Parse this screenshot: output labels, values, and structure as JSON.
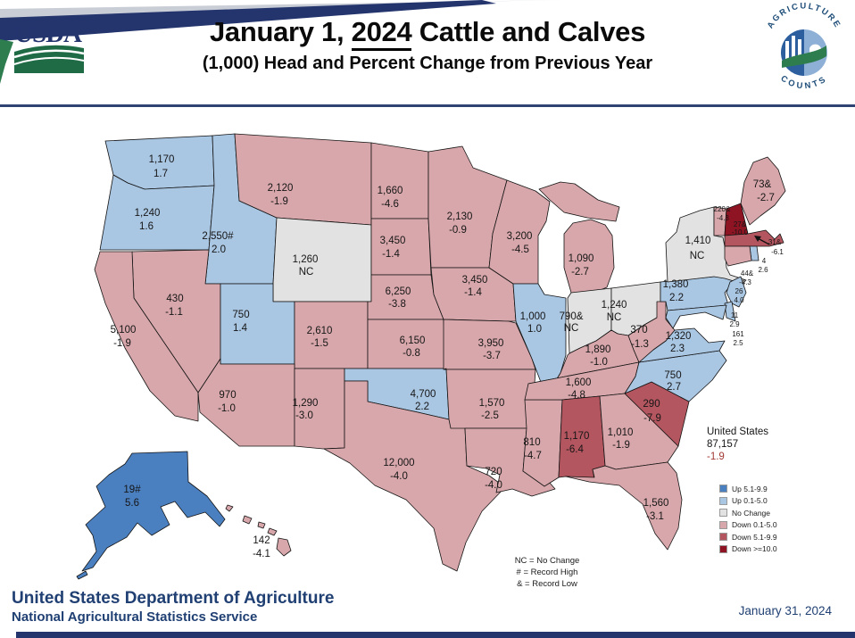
{
  "header": {
    "usda_wordmark": "USDA",
    "title": {
      "prefix": "January 1, ",
      "year": "2024",
      "suffix": " Cattle and Calves"
    },
    "subtitle": "(1,000) Head and Percent Change from Previous Year",
    "agriculture_counts_top": "AGRICULTURE",
    "agriculture_counts_bottom": "COUNTS"
  },
  "chart_data": {
    "type": "choropleth_map",
    "title": "January 1, 2024 Cattle and Calves",
    "subtitle": "(1,000) Head and Percent Change from Previous Year",
    "units": "1,000 head; percent change from previous year",
    "us_total": {
      "label": "United States",
      "value": "87,157",
      "change": "-1.9"
    },
    "legend": [
      {
        "key": "up-large",
        "label": "Up 5.1-9.9",
        "color": "#4a7fc0"
      },
      {
        "key": "up-small",
        "label": "Up 0.1-5.0",
        "color": "#a9c6e3"
      },
      {
        "key": "nc",
        "label": "No Change",
        "color": "#e2e2e2"
      },
      {
        "key": "down-small",
        "label": "Down 0.1-5.0",
        "color": "#d8a7ab"
      },
      {
        "key": "down-mid",
        "label": "Down 5.1-9.9",
        "color": "#b4565f"
      },
      {
        "key": "down-large",
        "label": "Down >=10.0",
        "color": "#8e1423"
      }
    ],
    "footnotes": [
      "NC = No Change",
      "# = Record High",
      "& = Record Low"
    ],
    "states": [
      {
        "id": "WA",
        "name": "Washington",
        "value": "1,170",
        "change": "1.7",
        "category": "up-small"
      },
      {
        "id": "OR",
        "name": "Oregon",
        "value": "1,240",
        "change": "1.6",
        "category": "up-small"
      },
      {
        "id": "ID",
        "name": "Idaho",
        "value": "2,550#",
        "change": "2.0",
        "category": "up-small"
      },
      {
        "id": "MT",
        "name": "Montana",
        "value": "2,120",
        "change": "-1.9",
        "category": "down-small"
      },
      {
        "id": "WY",
        "name": "Wyoming",
        "value": "1,260",
        "change": "NC",
        "category": "nc"
      },
      {
        "id": "NV",
        "name": "Nevada",
        "value": "430",
        "change": "-1.1",
        "category": "down-small"
      },
      {
        "id": "UT",
        "name": "Utah",
        "value": "750",
        "change": "1.4",
        "category": "up-small"
      },
      {
        "id": "CA",
        "name": "California",
        "value": "5,100",
        "change": "-1.9",
        "category": "down-small"
      },
      {
        "id": "CO",
        "name": "Colorado",
        "value": "2,610",
        "change": "-1.5",
        "category": "down-small"
      },
      {
        "id": "AZ",
        "name": "Arizona",
        "value": "970",
        "change": "-1.0",
        "category": "down-small"
      },
      {
        "id": "NM",
        "name": "New Mexico",
        "value": "1,290",
        "change": "-3.0",
        "category": "down-small"
      },
      {
        "id": "ND",
        "name": "North Dakota",
        "value": "1,660",
        "change": "-4.6",
        "category": "down-small"
      },
      {
        "id": "SD",
        "name": "South Dakota",
        "value": "3,450",
        "change": "-1.4",
        "category": "down-small"
      },
      {
        "id": "NE",
        "name": "Nebraska",
        "value": "6,250",
        "change": "-3.8",
        "category": "down-small"
      },
      {
        "id": "KS",
        "name": "Kansas",
        "value": "6,150",
        "change": "-0.8",
        "category": "down-small"
      },
      {
        "id": "OK",
        "name": "Oklahoma",
        "value": "4,700",
        "change": "2.2",
        "category": "up-small"
      },
      {
        "id": "TX",
        "name": "Texas",
        "value": "12,000",
        "change": "-4.0",
        "category": "down-small"
      },
      {
        "id": "MN",
        "name": "Minnesota",
        "value": "2,130",
        "change": "-0.9",
        "category": "down-small"
      },
      {
        "id": "IA",
        "name": "Iowa",
        "value": "3,450",
        "change": "-1.4",
        "category": "down-small"
      },
      {
        "id": "MO",
        "name": "Missouri",
        "value": "3,950",
        "change": "-3.7",
        "category": "down-small"
      },
      {
        "id": "AR",
        "name": "Arkansas",
        "value": "1,570",
        "change": "-2.5",
        "category": "down-small"
      },
      {
        "id": "LA",
        "name": "Louisiana",
        "value": "720",
        "change": "-4.0",
        "category": "down-small"
      },
      {
        "id": "WI",
        "name": "Wisconsin",
        "value": "3,200",
        "change": "-4.5",
        "category": "down-small"
      },
      {
        "id": "IL",
        "name": "Illinois",
        "value": "1,000",
        "change": "1.0",
        "category": "up-small"
      },
      {
        "id": "MS",
        "name": "Mississippi",
        "value": "810",
        "change": "-4.7",
        "category": "down-small"
      },
      {
        "id": "MI",
        "name": "Michigan",
        "value": "1,090",
        "change": "-2.7",
        "category": "down-small"
      },
      {
        "id": "IN",
        "name": "Indiana",
        "value": "790&",
        "change": "NC",
        "category": "nc"
      },
      {
        "id": "OH",
        "name": "Ohio",
        "value": "1,240",
        "change": "NC",
        "category": "nc"
      },
      {
        "id": "KY",
        "name": "Kentucky",
        "value": "1,890",
        "change": "-1.0",
        "category": "down-small"
      },
      {
        "id": "TN",
        "name": "Tennessee",
        "value": "1,600",
        "change": "-4.8",
        "category": "down-small"
      },
      {
        "id": "AL",
        "name": "Alabama",
        "value": "1,170",
        "change": "-6.4",
        "category": "down-mid"
      },
      {
        "id": "GA",
        "name": "Georgia",
        "value": "1,010",
        "change": "-1.9",
        "category": "down-small"
      },
      {
        "id": "FL",
        "name": "Florida",
        "value": "1,560",
        "change": "-3.1",
        "category": "down-small"
      },
      {
        "id": "SC",
        "name": "South Carolina",
        "value": "290",
        "change": "-7.9",
        "category": "down-mid"
      },
      {
        "id": "NC",
        "name": "North Carolina",
        "value": "750",
        "change": "2.7",
        "category": "up-small"
      },
      {
        "id": "VA",
        "name": "Virginia",
        "value": "1,320",
        "change": "2.3",
        "category": "up-small"
      },
      {
        "id": "WV",
        "name": "West Virginia",
        "value": "370",
        "change": "-1.3",
        "category": "down-small"
      },
      {
        "id": "PA",
        "name": "Pennsylvania",
        "value": "1,380",
        "change": "2.2",
        "category": "up-small"
      },
      {
        "id": "NY",
        "name": "New York",
        "value": "1,410",
        "change": "NC",
        "category": "nc"
      },
      {
        "id": "ME",
        "name": "Maine",
        "value": "73&",
        "change": "-2.7",
        "category": "down-small"
      },
      {
        "id": "VT",
        "name": "Vermont",
        "value": "220&",
        "change": "-4.3",
        "category": "down-small"
      },
      {
        "id": "NH",
        "name": "New Hampshire",
        "value": "27&",
        "change": "-10.0",
        "category": "down-large"
      },
      {
        "id": "MA",
        "name": "Massachusetts",
        "value": "31&",
        "change": "-6.1",
        "category": "down-mid"
      },
      {
        "id": "RI",
        "name": "Rhode Island",
        "value": "4",
        "change": "2.6",
        "category": "up-small"
      },
      {
        "id": "CT",
        "name": "Connecticut",
        "value": "44&",
        "change": "-4.3",
        "category": "down-small"
      },
      {
        "id": "NJ",
        "name": "New Jersey",
        "value": "26",
        "change": "4.0",
        "category": "up-small"
      },
      {
        "id": "DE",
        "name": "Delaware",
        "value": "11",
        "change": "2.9",
        "category": "up-small"
      },
      {
        "id": "MD",
        "name": "Maryland",
        "value": "161",
        "change": "2.5",
        "category": "up-small"
      },
      {
        "id": "AK",
        "name": "Alaska",
        "value": "19#",
        "change": "5.6",
        "category": "up-large"
      },
      {
        "id": "HI",
        "name": "Hawaii",
        "value": "142",
        "change": "-4.1",
        "category": "down-small"
      }
    ]
  },
  "footer": {
    "department": "United States Department of Agriculture",
    "agency": "National Agricultural Statistics Service",
    "date": "January 31, 2024"
  }
}
